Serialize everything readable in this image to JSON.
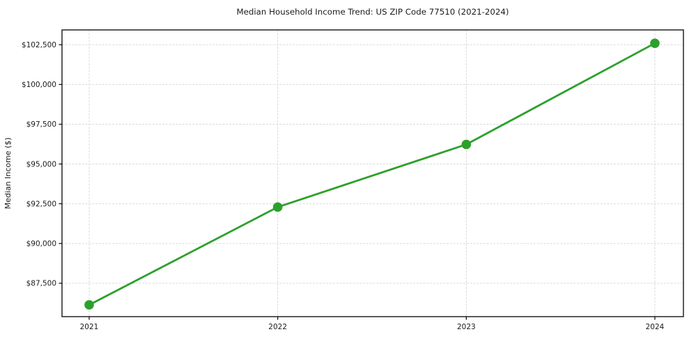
{
  "chart_data": {
    "type": "line",
    "title": "Median Household Income Trend: US ZIP Code 77510 (2021-2024)",
    "xlabel": "",
    "ylabel": "Median Income ($)",
    "x": [
      "2021",
      "2022",
      "2023",
      "2024"
    ],
    "values": [
      86140,
      92290,
      96230,
      102590
    ],
    "y_tick_values": [
      87500,
      90000,
      92500,
      95000,
      97500,
      100000,
      102500
    ],
    "y_tick_labels": [
      "$87,500",
      "$90,000",
      "$92,500",
      "$95,000",
      "$97,500",
      "$100,000",
      "$102,500"
    ],
    "ylim": [
      85400,
      103430
    ],
    "grid": true,
    "grid_style": "dashed",
    "legend_position": "none",
    "colors": {
      "line": "#2ca02c",
      "marker": "#2ca02c",
      "grid": "#d9d9d9",
      "spine": "#000000",
      "tick": "#000000",
      "text": "#1a1a1a",
      "background": "#ffffff"
    }
  }
}
